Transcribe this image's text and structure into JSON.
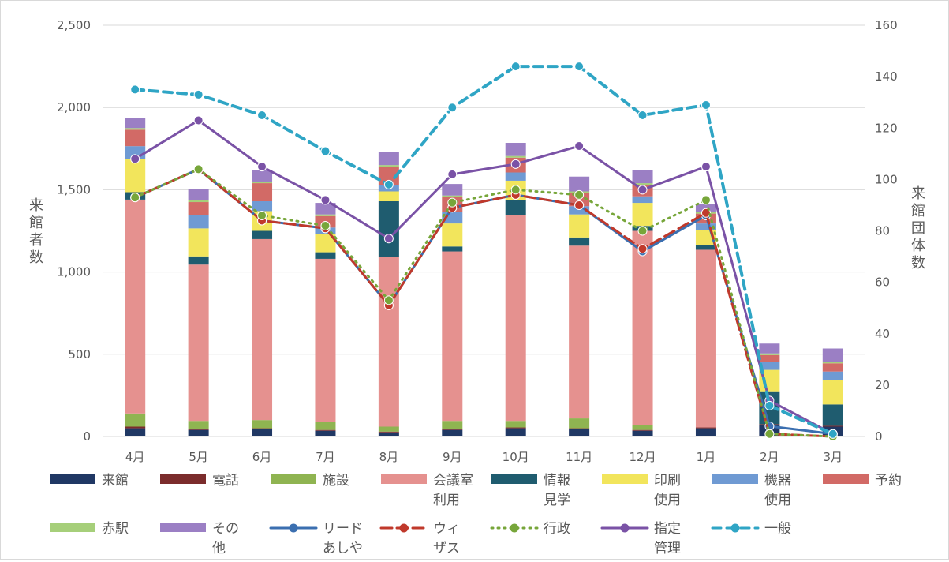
{
  "chart_data": {
    "type": "bar",
    "categories": [
      "4月",
      "5月",
      "6月",
      "7月",
      "8月",
      "9月",
      "10月",
      "11月",
      "12月",
      "1月",
      "2月",
      "3月"
    ],
    "ylabel": "来館者数",
    "y2label": "来館団体数",
    "ylim": [
      0,
      2500
    ],
    "y2lim": [
      0,
      160
    ],
    "y_ticks": [
      "0",
      "500",
      "1,000",
      "1,500",
      "2,000",
      "2,500"
    ],
    "y2_ticks": [
      "0",
      "20",
      "40",
      "60",
      "80",
      "100",
      "120",
      "140",
      "160"
    ],
    "grid": true,
    "legend_position": "bottom",
    "bar_series": [
      {
        "name": "来館",
        "color": "#203864",
        "values": [
          50,
          40,
          45,
          35,
          25,
          40,
          50,
          45,
          35,
          50,
          70,
          60
        ]
      },
      {
        "name": "電話",
        "color": "#7b2c2c",
        "values": [
          10,
          5,
          5,
          5,
          5,
          5,
          5,
          5,
          5,
          5,
          5,
          5
        ]
      },
      {
        "name": "施設",
        "color": "#8fb451",
        "values": [
          80,
          50,
          50,
          50,
          30,
          50,
          40,
          60,
          30,
          0,
          0,
          0
        ]
      },
      {
        "name": "会議室利用",
        "color": "#e5918f",
        "values": [
          1300,
          950,
          1100,
          990,
          1030,
          1030,
          1250,
          1050,
          1180,
          1080,
          0,
          0
        ]
      },
      {
        "name": "情報見学",
        "color": "#1f5c6f",
        "values": [
          45,
          50,
          50,
          40,
          340,
          30,
          90,
          50,
          30,
          30,
          200,
          130
        ]
      },
      {
        "name": "印刷使用",
        "color": "#f2e55c",
        "values": [
          200,
          170,
          120,
          110,
          60,
          140,
          120,
          140,
          140,
          90,
          130,
          150
        ]
      },
      {
        "name": "機器使用",
        "color": "#6f9ad3",
        "values": [
          80,
          80,
          60,
          40,
          40,
          70,
          50,
          50,
          40,
          40,
          50,
          50
        ]
      },
      {
        "name": "予約",
        "color": "#d26a66",
        "values": [
          100,
          80,
          110,
          70,
          110,
          90,
          90,
          80,
          70,
          60,
          40,
          50
        ]
      },
      {
        "name": "赤駅",
        "color": "#a6cf7a",
        "values": [
          10,
          10,
          10,
          10,
          10,
          10,
          10,
          10,
          10,
          10,
          10,
          10
        ]
      },
      {
        "name": "その他",
        "color": "#9b7fc4",
        "values": [
          60,
          70,
          70,
          70,
          80,
          70,
          80,
          90,
          80,
          50,
          60,
          80
        ]
      }
    ],
    "line_series": [
      {
        "name": "リードあしや",
        "color": "#3b6fb0",
        "style": "solid",
        "values": [
          93,
          104,
          84,
          81,
          51,
          89,
          94,
          90,
          72,
          86,
          4,
          1
        ]
      },
      {
        "name": "ウィザス",
        "color": "#c0392b",
        "style": "longdash",
        "values": [
          93,
          104,
          84,
          81,
          51,
          89,
          94,
          90,
          73,
          87,
          1,
          0
        ]
      },
      {
        "name": "行政",
        "color": "#77a63a",
        "style": "dotted",
        "values": [
          93,
          104,
          86,
          82,
          53,
          91,
          96,
          94,
          80,
          92,
          1,
          0
        ]
      },
      {
        "name": "指定管理",
        "color": "#7a52a6",
        "style": "solid",
        "values": [
          108,
          123,
          105,
          92,
          77,
          102,
          106,
          113,
          96,
          105,
          14,
          1
        ]
      },
      {
        "name": "一般",
        "color": "#2fa5c5",
        "style": "dashed",
        "values": [
          135,
          133,
          125,
          111,
          98,
          128,
          144,
          144,
          125,
          129,
          12,
          1
        ]
      }
    ]
  },
  "legend": [
    {
      "label_lines": [
        "来館"
      ],
      "kind": "bar",
      "color": "#203864"
    },
    {
      "label_lines": [
        "電話"
      ],
      "kind": "bar",
      "color": "#7b2c2c"
    },
    {
      "label_lines": [
        "施設"
      ],
      "kind": "bar",
      "color": "#8fb451"
    },
    {
      "label_lines": [
        "会議室",
        "利用"
      ],
      "kind": "bar",
      "color": "#e5918f"
    },
    {
      "label_lines": [
        "情報",
        "見学"
      ],
      "kind": "bar",
      "color": "#1f5c6f"
    },
    {
      "label_lines": [
        "印刷",
        "使用"
      ],
      "kind": "bar",
      "color": "#f2e55c"
    },
    {
      "label_lines": [
        "機器",
        "使用"
      ],
      "kind": "bar",
      "color": "#6f9ad3"
    },
    {
      "label_lines": [
        "予約"
      ],
      "kind": "bar",
      "color": "#d26a66"
    },
    {
      "label_lines": [
        "赤駅"
      ],
      "kind": "bar",
      "color": "#a6cf7a"
    },
    {
      "label_lines": [
        "その",
        "他"
      ],
      "kind": "bar",
      "color": "#9b7fc4"
    },
    {
      "label_lines": [
        "リード",
        "あしや"
      ],
      "kind": "line",
      "color": "#3b6fb0",
      "style": "solid"
    },
    {
      "label_lines": [
        "ウィ",
        "ザス"
      ],
      "kind": "line",
      "color": "#c0392b",
      "style": "longdash"
    },
    {
      "label_lines": [
        "行政"
      ],
      "kind": "line",
      "color": "#77a63a",
      "style": "dotted"
    },
    {
      "label_lines": [
        "指定",
        "管理"
      ],
      "kind": "line",
      "color": "#7a52a6",
      "style": "solid"
    },
    {
      "label_lines": [
        "一般"
      ],
      "kind": "line",
      "color": "#2fa5c5",
      "style": "dashed"
    }
  ]
}
